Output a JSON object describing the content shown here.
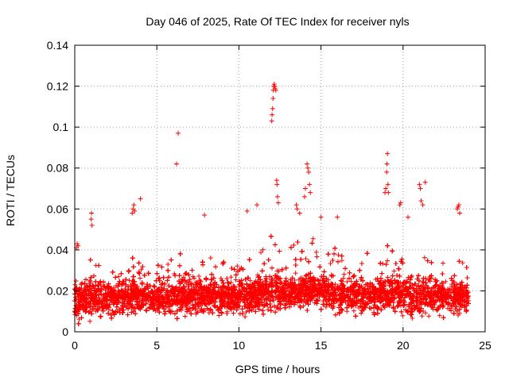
{
  "chart_data": {
    "type": "scatter",
    "title": "Day 046 of 2025, Rate Of TEC Index for receiver nyls",
    "xlabel": "GPS time / hours",
    "ylabel": "ROTI / TECUs",
    "xlim": [
      0,
      25
    ],
    "ylim": [
      0,
      0.14
    ],
    "xticks": [
      0,
      5,
      10,
      15,
      20,
      25
    ],
    "yticks": [
      0,
      0.02,
      0.04,
      0.06,
      0.08,
      0.1,
      0.12,
      0.14
    ],
    "xtick_labels": [
      "0",
      "5",
      "10",
      "15",
      "20",
      "25"
    ],
    "ytick_labels": [
      "0",
      "0.02",
      "0.04",
      "0.06",
      "0.08",
      "0.1",
      "0.12",
      "0.14"
    ],
    "grid": true,
    "marker": "+",
    "color": "#ff0000",
    "series": [
      {
        "name": "ROTI",
        "envelope": {
          "x": [
            0,
            0.5,
            1,
            1.5,
            2,
            2.5,
            3,
            3.5,
            4,
            4.5,
            5,
            5.5,
            6,
            6.5,
            7,
            7.5,
            8,
            8.5,
            9,
            9.5,
            10,
            10.5,
            11,
            11.5,
            12,
            12.5,
            13,
            13.5,
            14,
            14.5,
            15,
            15.5,
            16,
            16.5,
            17,
            17.5,
            18,
            18.5,
            19,
            19.5,
            20,
            20.5,
            21,
            21.5,
            22,
            22.5,
            23,
            23.5,
            24
          ],
          "base": [
            0.015,
            0.015,
            0.016,
            0.016,
            0.016,
            0.016,
            0.016,
            0.017,
            0.017,
            0.016,
            0.016,
            0.016,
            0.017,
            0.017,
            0.017,
            0.017,
            0.017,
            0.017,
            0.017,
            0.017,
            0.017,
            0.017,
            0.018,
            0.018,
            0.019,
            0.019,
            0.019,
            0.019,
            0.019,
            0.02,
            0.02,
            0.019,
            0.018,
            0.018,
            0.018,
            0.018,
            0.018,
            0.018,
            0.019,
            0.019,
            0.018,
            0.017,
            0.017,
            0.017,
            0.017,
            0.017,
            0.017,
            0.017,
            0.017
          ],
          "top": [
            0.027,
            0.03,
            0.036,
            0.04,
            0.032,
            0.03,
            0.036,
            0.04,
            0.036,
            0.034,
            0.036,
            0.038,
            0.04,
            0.042,
            0.04,
            0.036,
            0.038,
            0.036,
            0.036,
            0.036,
            0.038,
            0.04,
            0.04,
            0.042,
            0.048,
            0.044,
            0.046,
            0.048,
            0.048,
            0.046,
            0.046,
            0.04,
            0.044,
            0.04,
            0.036,
            0.036,
            0.036,
            0.04,
            0.044,
            0.04,
            0.036,
            0.034,
            0.038,
            0.038,
            0.036,
            0.034,
            0.034,
            0.036,
            0.034
          ]
        },
        "highlights": [
          [
            0.1,
            0.041
          ],
          [
            0.15,
            0.043
          ],
          [
            0.2,
            0.042
          ],
          [
            1.0,
            0.055
          ],
          [
            1.02,
            0.058
          ],
          [
            1.05,
            0.052
          ],
          [
            3.5,
            0.058
          ],
          [
            3.55,
            0.06
          ],
          [
            3.6,
            0.062
          ],
          [
            3.65,
            0.059
          ],
          [
            4.0,
            0.065
          ],
          [
            6.2,
            0.082
          ],
          [
            6.3,
            0.097
          ],
          [
            7.9,
            0.057
          ],
          [
            10.5,
            0.059
          ],
          [
            11.1,
            0.062
          ],
          [
            12.0,
            0.103
          ],
          [
            12.02,
            0.106
          ],
          [
            12.05,
            0.109
          ],
          [
            12.08,
            0.114
          ],
          [
            12.1,
            0.118
          ],
          [
            12.12,
            0.12
          ],
          [
            12.15,
            0.121
          ],
          [
            12.18,
            0.12
          ],
          [
            12.2,
            0.119
          ],
          [
            12.25,
            0.118
          ],
          [
            12.3,
            0.074
          ],
          [
            12.32,
            0.072
          ],
          [
            12.35,
            0.066
          ],
          [
            12.4,
            0.063
          ],
          [
            13.5,
            0.062
          ],
          [
            13.55,
            0.06
          ],
          [
            13.7,
            0.058
          ],
          [
            14.0,
            0.066
          ],
          [
            14.05,
            0.07
          ],
          [
            14.15,
            0.082
          ],
          [
            14.2,
            0.08
          ],
          [
            14.25,
            0.078
          ],
          [
            14.3,
            0.072
          ],
          [
            14.35,
            0.068
          ],
          [
            15.0,
            0.056
          ],
          [
            16.0,
            0.056
          ],
          [
            18.9,
            0.068
          ],
          [
            18.95,
            0.07
          ],
          [
            19.0,
            0.078
          ],
          [
            19.02,
            0.082
          ],
          [
            19.05,
            0.087
          ],
          [
            19.08,
            0.072
          ],
          [
            19.1,
            0.068
          ],
          [
            19.8,
            0.062
          ],
          [
            19.85,
            0.063
          ],
          [
            20.3,
            0.056
          ],
          [
            21.0,
            0.072
          ],
          [
            21.05,
            0.07
          ],
          [
            21.1,
            0.064
          ],
          [
            21.2,
            0.062
          ],
          [
            21.35,
            0.073
          ],
          [
            23.3,
            0.06
          ],
          [
            23.35,
            0.061
          ],
          [
            23.4,
            0.062
          ],
          [
            23.45,
            0.058
          ]
        ],
        "n_points": 9000
      }
    ]
  }
}
